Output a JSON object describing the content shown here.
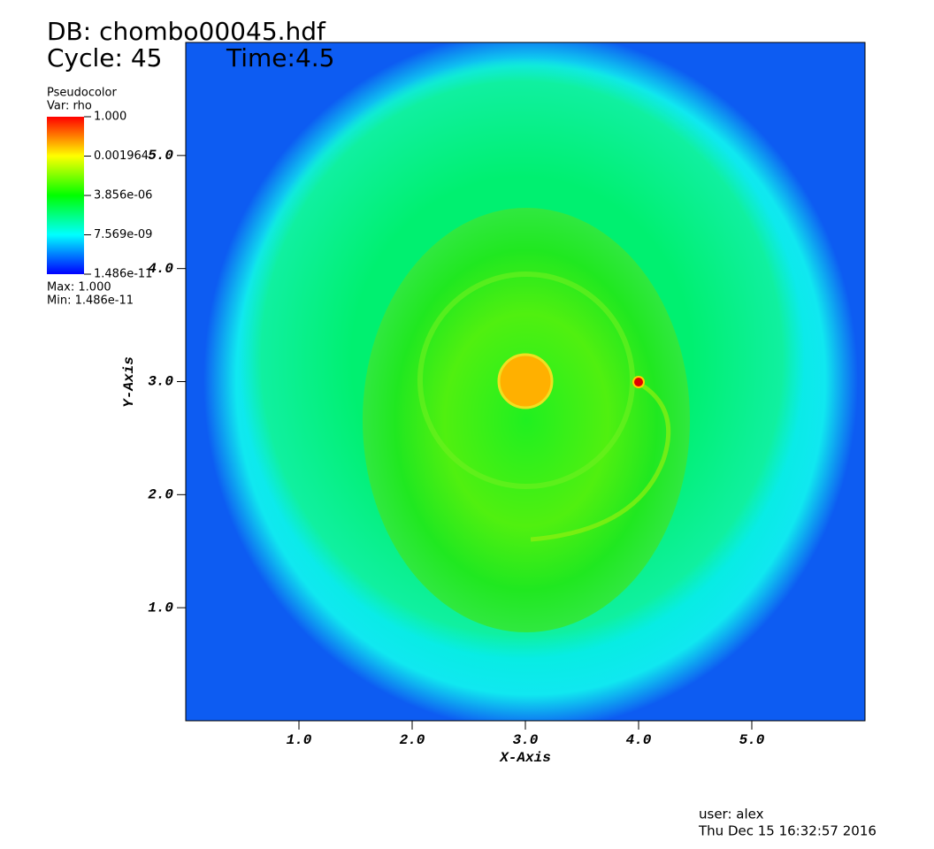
{
  "chart_data": {
    "type": "pseudocolor",
    "db_label": "DB: chombo00045.hdf",
    "cycle_label": "Cycle: 45",
    "time_label": "Time:4.5",
    "legend_title": "Pseudocolor",
    "legend_var": "Var: rho",
    "max_label": "Max:  1.000",
    "min_label": "Min:  1.486e-11",
    "colorbar_scale": "log",
    "colorbar_lim": [
      1.486e-11,
      1
    ],
    "colorbar_ticks": [
      {
        "value": 1,
        "label": "1.000"
      },
      0.001964,
      {
        "value": 3.856e-06,
        "label": "3.856e-06"
      },
      {
        "value": 7.569e-09,
        "label": "7.569e-09"
      },
      {
        "value": 1.486e-11,
        "label": "1.486e-11"
      }
    ],
    "x_label": "X-Axis",
    "y_label": "Y-Axis",
    "xlim": [
      0,
      6
    ],
    "ylim": [
      0,
      6
    ],
    "xticks": [
      {
        "value": 1,
        "label": "1.0"
      },
      {
        "value": 2,
        "label": "2.0"
      },
      {
        "value": 3,
        "label": "3.0"
      },
      {
        "value": 4,
        "label": "4.0"
      },
      {
        "value": 5,
        "label": "5.0"
      }
    ],
    "yticks": [
      {
        "value": 1,
        "label": "1.0"
      },
      {
        "value": 2,
        "label": "2.0"
      },
      {
        "value": 3,
        "label": "3.0"
      },
      {
        "value": 4,
        "label": "4.0"
      },
      {
        "value": 5,
        "label": "5.0"
      }
    ],
    "user_label": "user: alex",
    "date_label": "Thu Dec 15 16:32:57 2016"
  }
}
